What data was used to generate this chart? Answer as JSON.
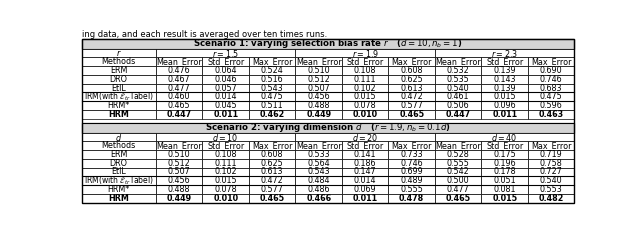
{
  "above_text": "ing data, and each result is averaged over ten times runs.",
  "scenario1_title": "Scenario 1: varying selection bias rate $r$   ($d = 10, n_b = 1$)",
  "scenario2_title": "Scenario 2: varying dimension $d$   ($r = 1.9, n_b = 0.1d$)",
  "scenario1_col_groups": [
    "$r = 1.5$",
    "$r = 1.9$",
    "$r = 2.3$"
  ],
  "scenario1_row_header": "$r$",
  "scenario2_col_groups": [
    "$d = 10$",
    "$d = 20$",
    "$d = 40$"
  ],
  "scenario2_row_header": "$d$",
  "methods": [
    "ERM",
    "DRO",
    "EtIL",
    "IRM(with $\\mathcal{E}_{tr}$ label)",
    "HRM*",
    "HRM"
  ],
  "col_headers": [
    "Mean_Error",
    "Std_Error",
    "Max_Error"
  ],
  "scenario1_data": [
    [
      0.476,
      0.064,
      0.524,
      0.51,
      0.108,
      0.608,
      0.532,
      0.139,
      0.69
    ],
    [
      0.467,
      0.046,
      0.516,
      0.512,
      0.111,
      0.625,
      0.535,
      0.143,
      0.746
    ],
    [
      0.477,
      0.057,
      0.543,
      0.507,
      0.102,
      0.613,
      0.54,
      0.139,
      0.683
    ],
    [
      0.46,
      0.014,
      0.475,
      0.456,
      0.015,
      0.472,
      0.461,
      0.015,
      0.475
    ],
    [
      0.465,
      0.045,
      0.511,
      0.488,
      0.078,
      0.577,
      0.506,
      0.096,
      0.596
    ],
    [
      0.447,
      0.011,
      0.462,
      0.449,
      0.01,
      0.465,
      0.447,
      0.011,
      0.463
    ]
  ],
  "scenario2_data": [
    [
      0.51,
      0.108,
      0.608,
      0.533,
      0.141,
      0.733,
      0.528,
      0.175,
      0.719
    ],
    [
      0.512,
      0.111,
      0.625,
      0.564,
      0.186,
      0.746,
      0.555,
      0.196,
      0.758
    ],
    [
      0.507,
      0.102,
      0.613,
      0.543,
      0.147,
      0.699,
      0.542,
      0.178,
      0.727
    ],
    [
      0.456,
      0.015,
      0.472,
      0.484,
      0.014,
      0.489,
      0.5,
      0.051,
      0.54
    ],
    [
      0.488,
      0.078,
      0.577,
      0.486,
      0.069,
      0.555,
      0.477,
      0.081,
      0.553
    ],
    [
      0.449,
      0.01,
      0.465,
      0.466,
      0.011,
      0.478,
      0.465,
      0.015,
      0.482
    ]
  ],
  "bold_row_idx": 5,
  "header_bg": "#d4d4d4",
  "white": "#ffffff",
  "border_color": "#000000",
  "font_size": 5.8,
  "title_font_size": 6.2,
  "above_text_font_size": 6.0
}
